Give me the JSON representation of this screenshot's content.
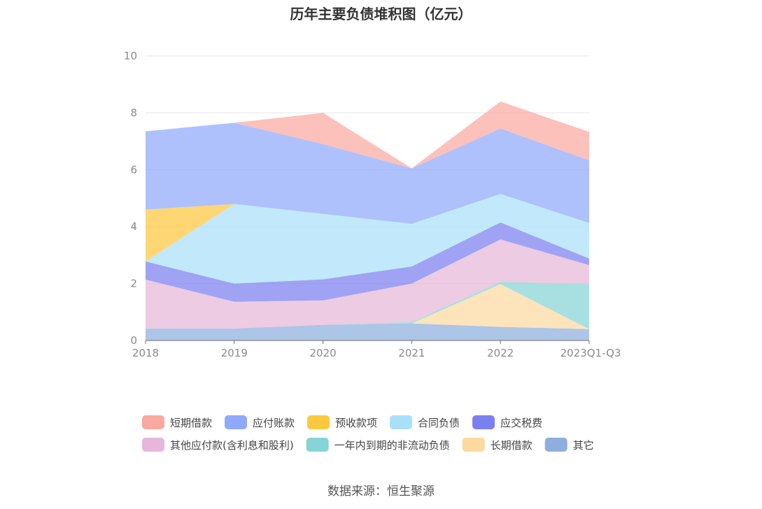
{
  "chart_data": {
    "type": "area",
    "stacked": true,
    "title": "历年主要负债堆积图（亿元）",
    "categories": [
      "2018",
      "2019",
      "2020",
      "2021",
      "2022",
      "2023Q1-Q3"
    ],
    "ylim": [
      0,
      10
    ],
    "yticks": [
      0,
      2,
      4,
      6,
      8,
      10
    ],
    "grid": true,
    "legend_position": "bottom",
    "series": [
      {
        "name": "其它",
        "color": "#8eaedc",
        "values": [
          0.42,
          0.42,
          0.55,
          0.6,
          0.48,
          0.4
        ]
      },
      {
        "name": "长期借款",
        "color": "#fdd9a0",
        "values": [
          0.0,
          0.0,
          0.0,
          0.0,
          1.5,
          0.0
        ]
      },
      {
        "name": "一年内到期的非流动负债",
        "color": "#86d4d5",
        "values": [
          0.0,
          0.0,
          0.0,
          0.05,
          0.08,
          1.58
        ]
      },
      {
        "name": "其他应付款(含利息和股利)",
        "color": "#e6b7d8",
        "values": [
          1.72,
          0.94,
          0.86,
          1.35,
          1.49,
          0.67
        ]
      },
      {
        "name": "应交税费",
        "color": "#7b80f0",
        "values": [
          0.64,
          0.64,
          0.74,
          0.6,
          0.6,
          0.23
        ]
      },
      {
        "name": "合同负债",
        "color": "#a9e0f9",
        "values": [
          0.0,
          2.8,
          2.3,
          1.5,
          1.0,
          1.25
        ]
      },
      {
        "name": "预收款项",
        "color": "#fdc83e",
        "values": [
          1.82,
          0.0,
          0.0,
          0.0,
          0.0,
          0.0
        ]
      },
      {
        "name": "应付账款",
        "color": "#8fa9fb",
        "values": [
          2.75,
          2.85,
          2.45,
          1.95,
          2.3,
          2.2
        ]
      },
      {
        "name": "短期借款",
        "color": "#f9a99f",
        "values": [
          0.0,
          0.0,
          1.1,
          0.0,
          0.95,
          1.0
        ]
      }
    ],
    "legend_order": [
      "短期借款",
      "应付账款",
      "预收款项",
      "合同负债",
      "应交税费",
      "其他应付款(含利息和股利)",
      "一年内到期的非流动负债",
      "长期借款",
      "其它"
    ]
  },
  "source_text": "数据来源：恒生聚源"
}
